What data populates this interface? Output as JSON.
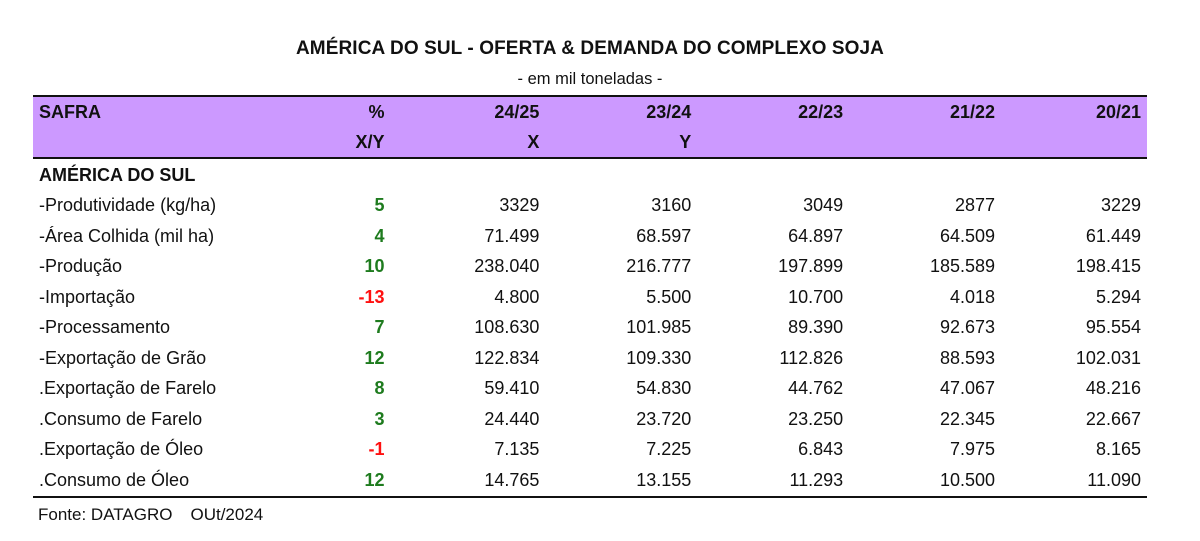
{
  "title": "AMÉRICA DO SUL - OFERTA & DEMANDA DO COMPLEXO SOJA",
  "subtitle": "- em mil toneladas -",
  "header": {
    "row1": [
      "SAFRA",
      "%",
      "24/25",
      "23/24",
      "22/23",
      "21/22",
      "20/21"
    ],
    "row2": [
      "",
      "X/Y",
      "X",
      "Y",
      "",
      "",
      ""
    ]
  },
  "section_label": "AMÉRICA DO SUL",
  "rows": [
    {
      "label": "-Produtividade (kg/ha)",
      "pct": "5",
      "values": [
        "3329",
        "3160",
        "3049",
        "2877",
        "3229"
      ]
    },
    {
      "label": "-Área Colhida (mil ha)",
      "pct": "4",
      "values": [
        "71.499",
        "68.597",
        "64.897",
        "64.509",
        "61.449"
      ]
    },
    {
      "label": "-Produção",
      "pct": "10",
      "values": [
        "238.040",
        "216.777",
        "197.899",
        "185.589",
        "198.415"
      ]
    },
    {
      "label": "-Importação",
      "pct": "-13",
      "values": [
        "4.800",
        "5.500",
        "10.700",
        "4.018",
        "5.294"
      ]
    },
    {
      "label": "-Processamento",
      "pct": "7",
      "values": [
        "108.630",
        "101.985",
        "89.390",
        "92.673",
        "95.554"
      ]
    },
    {
      "label": "-Exportação de Grão",
      "pct": "12",
      "values": [
        "122.834",
        "109.330",
        "112.826",
        "88.593",
        "102.031"
      ]
    },
    {
      "label": ".Exportação de Farelo",
      "pct": "8",
      "values": [
        "59.410",
        "54.830",
        "44.762",
        "47.067",
        "48.216"
      ]
    },
    {
      "label": ".Consumo de Farelo",
      "pct": "3",
      "values": [
        "24.440",
        "23.720",
        "23.250",
        "22.345",
        "22.667"
      ]
    },
    {
      "label": ".Exportação de Óleo",
      "pct": "-1",
      "values": [
        "7.135",
        "7.225",
        "6.843",
        "7.975",
        "8.165"
      ]
    },
    {
      "label": ".Consumo de Óleo",
      "pct": "12",
      "values": [
        "14.765",
        "13.155",
        "11.293",
        "10.500",
        "11.090"
      ]
    }
  ],
  "footer": {
    "source": "Fonte: DATAGRO",
    "date": "OUt/2024"
  },
  "colors": {
    "header_bg": "#cc99ff",
    "positive": "#1e7b1e",
    "negative": "#ff1010"
  }
}
